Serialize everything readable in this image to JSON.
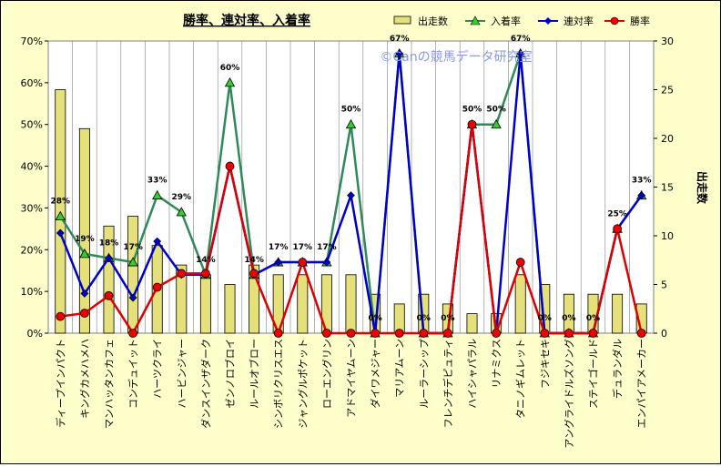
{
  "chart_data": {
    "type": "bar+line",
    "title": "勝率、連対率、入着率",
    "watermark": "©Canの競馬データ研究室",
    "y2label": "出走数",
    "ylim": [
      0,
      70
    ],
    "y2lim": [
      0,
      30
    ],
    "grid": "x-only",
    "legend_position": "top-right",
    "categories": [
      "ディープインパクト",
      "キングカメハメハ",
      "マンハッタンカフェ",
      "コンデュイット",
      "ハーツクライ",
      "ハービンジャー",
      "ダンスインザダーク",
      "ゼンノロブロイ",
      "ルールオブロー",
      "シンボリクリスエス",
      "ジャングルポケット",
      "ローエングリン",
      "アドマイヤムーン",
      "ダイワメジャー",
      "マリアムーン",
      "ルーラーシップ",
      "フレンチデピュティ",
      "ハイシャパラル",
      "リナミクス",
      "タニノギムレット",
      "フジキセキ",
      "アングライドルズソング",
      "ステイゴールド",
      "デュランダル",
      "エンパイアメーカー"
    ],
    "yticks": [
      "0%",
      "10%",
      "20%",
      "30%",
      "40%",
      "50%",
      "60%",
      "70%"
    ],
    "y2ticks": [
      "0",
      "5",
      "10",
      "15",
      "20",
      "25",
      "30"
    ],
    "bar_series": {
      "name": "出走数",
      "color": "#e5e07a",
      "values": [
        25,
        21,
        11,
        12,
        9,
        7,
        6,
        5,
        7,
        6,
        6,
        6,
        6,
        4,
        3,
        4,
        3,
        2,
        2,
        6,
        5,
        4,
        4,
        4,
        3
      ]
    },
    "series": [
      {
        "name": "入着率",
        "color": "#2e8b57",
        "marker": "triangle",
        "values": [
          28,
          19,
          18,
          17,
          33,
          29,
          14,
          60,
          14,
          17,
          17,
          17,
          50,
          0,
          67,
          0,
          0,
          50,
          50,
          67,
          0,
          0,
          0,
          25,
          33
        ],
        "labels": [
          "28%",
          "19%",
          "18%",
          "17%",
          "33%",
          "29%",
          "14%",
          "60%",
          "14%",
          "17%",
          "17%",
          "17%",
          "50%",
          "0%",
          "67%",
          "0%",
          "0%",
          "50%",
          "50%",
          "67%",
          "0%",
          "0%",
          "0%",
          "25%",
          "33%"
        ],
        "label_mask": [
          1,
          1,
          1,
          1,
          1,
          1,
          1,
          1,
          1,
          1,
          1,
          1,
          1,
          1,
          1,
          1,
          1,
          1,
          1,
          1,
          1,
          1,
          1,
          1,
          1
        ]
      },
      {
        "name": "連対率",
        "color": "#0000cc",
        "marker": "diamond",
        "values": [
          24,
          9.5,
          18,
          8.5,
          22,
          14,
          14,
          40,
          14,
          17,
          17,
          17,
          33,
          0,
          67,
          0,
          0,
          50,
          0,
          67,
          0,
          0,
          0,
          25,
          33
        ]
      },
      {
        "name": "勝率",
        "color": "#dd0000",
        "marker": "circle",
        "values": [
          4,
          4.8,
          9,
          0,
          11,
          14.3,
          14.3,
          40,
          14.3,
          0,
          17,
          0,
          0,
          0,
          0,
          0,
          0,
          50,
          0,
          17,
          0,
          0,
          0,
          25,
          0
        ]
      }
    ]
  }
}
